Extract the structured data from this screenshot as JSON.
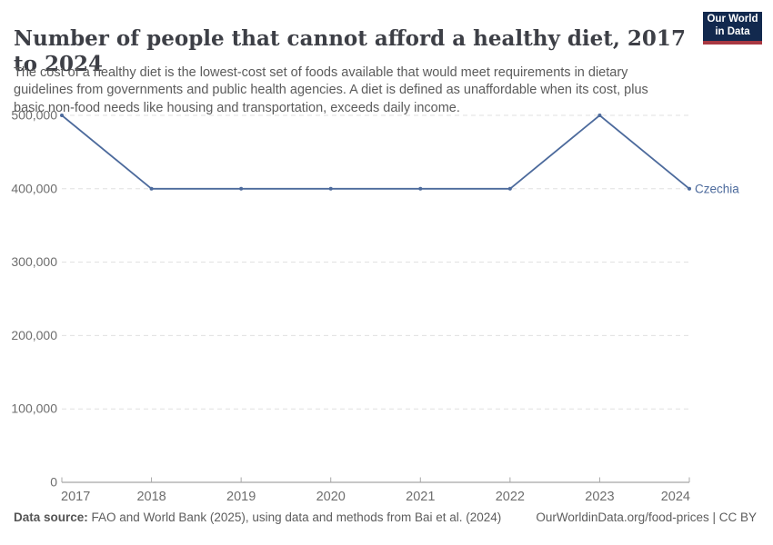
{
  "header": {
    "title": "Number of people that cannot afford a healthy diet, 2017 to 2024",
    "subtitle": "The cost of a healthy diet is the lowest-cost set of foods available that would meet requirements in dietary guidelines from governments and public health agencies. A diet is defined as unaffordable when its cost, plus basic non-food needs like housing and transportation, exceeds daily income."
  },
  "logo": {
    "line1": "Our World",
    "line2": "in Data",
    "bg_color": "#12294E",
    "accent_color": "#A83842"
  },
  "chart_data": {
    "type": "line",
    "title": "Number of people that cannot afford a healthy diet, 2017 to 2024",
    "x": [
      2017,
      2018,
      2019,
      2020,
      2021,
      2022,
      2023,
      2024
    ],
    "series": [
      {
        "name": "Czechia",
        "color": "#4C6A9C",
        "values": [
          500000,
          400000,
          400000,
          400000,
          400000,
          400000,
          500000,
          400000
        ]
      }
    ],
    "ylim": [
      0,
      500000
    ],
    "yticks": [
      0,
      100000,
      200000,
      300000,
      400000,
      500000
    ],
    "ytick_labels": [
      "0",
      "100,000",
      "200,000",
      "300,000",
      "400,000",
      "500,000"
    ],
    "xtick_labels": [
      "2017",
      "2018",
      "2019",
      "2020",
      "2021",
      "2022",
      "2023",
      "2024"
    ],
    "grid": "horizontal-dashed",
    "legend_position": "end-of-line-label",
    "colors": {
      "gridline": "#e0e0e0",
      "axis_line": "#8f8f8f",
      "tick_mark": "#a8a8a8",
      "tick_label": "#6e6e6e"
    }
  },
  "footer": {
    "source_label": "Data source:",
    "source_text": " FAO and World Bank (2025), using data and methods from Bai et al. (2024)",
    "link_text": "OurWorldinData.org/food-prices | CC BY"
  }
}
